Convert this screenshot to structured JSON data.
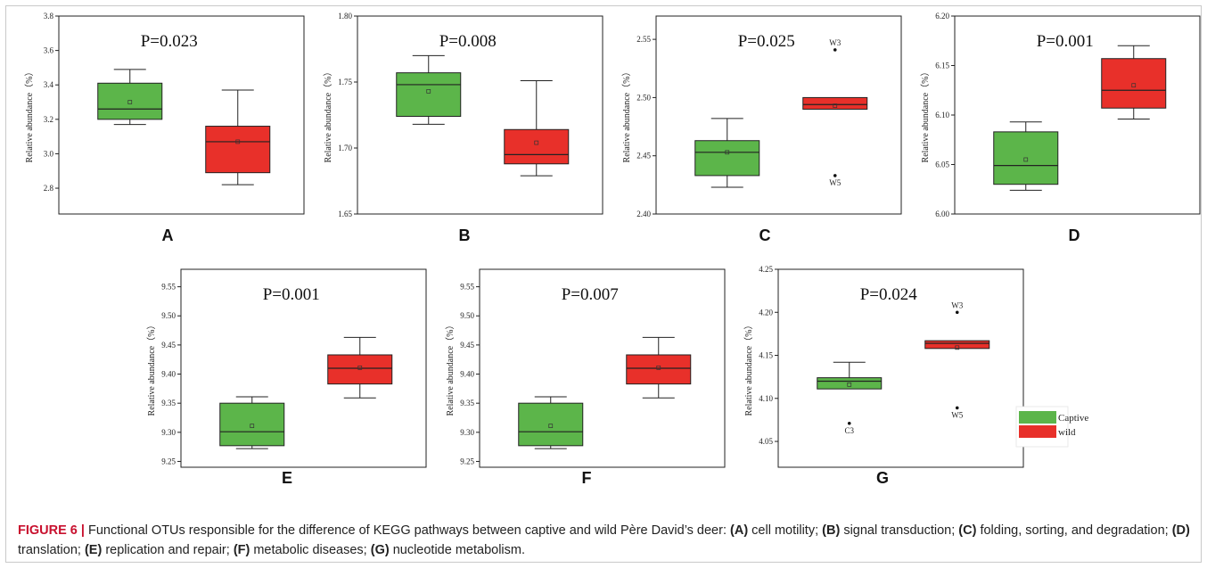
{
  "colors": {
    "captive": "#5cb54a",
    "wild": "#e8302a",
    "caption_label": "#c8102e"
  },
  "legend": {
    "items": [
      {
        "label": "Captive",
        "color": "#5cb54a"
      },
      {
        "label": "wild",
        "color": "#e8302a"
      }
    ]
  },
  "caption": {
    "label": "FIGURE 6 |",
    "parts": [
      {
        "text": " Functional OTUs responsible for the difference of KEGG pathways between captive and wild Père David’s deer: ",
        "bold": false
      },
      {
        "text": "(A)",
        "bold": true
      },
      {
        "text": " cell motility; ",
        "bold": false
      },
      {
        "text": "(B)",
        "bold": true
      },
      {
        "text": " signal transduction; ",
        "bold": false
      },
      {
        "text": "(C)",
        "bold": true
      },
      {
        "text": " folding, sorting, and degradation; ",
        "bold": false
      },
      {
        "text": "(D)",
        "bold": true
      },
      {
        "text": " translation; ",
        "bold": false
      },
      {
        "text": "(E)",
        "bold": true
      },
      {
        "text": " replication and repair; ",
        "bold": false
      },
      {
        "text": "(F)",
        "bold": true
      },
      {
        "text": " metabolic diseases; ",
        "bold": false
      },
      {
        "text": "(G)",
        "bold": true
      },
      {
        "text": " nucleotide metabolism.",
        "bold": false
      }
    ]
  },
  "chart_data": [
    {
      "type": "box",
      "panel": "A",
      "annotation": "P=0.023",
      "ylabel": "Relative abundance（%）",
      "ylim": [
        2.65,
        3.8
      ],
      "yticks": [
        "2.8",
        "3.0",
        "3.2",
        "3.4",
        "3.6",
        "3.8"
      ],
      "boxes": [
        {
          "group": "Captive",
          "whisker_low": 3.17,
          "q1": 3.2,
          "median": 3.26,
          "q3": 3.41,
          "whisker_high": 3.49,
          "mean": 3.3,
          "outliers": []
        },
        {
          "group": "wild",
          "whisker_low": 2.82,
          "q1": 2.89,
          "median": 3.07,
          "q3": 3.16,
          "whisker_high": 3.37,
          "mean": 3.07,
          "outliers": []
        }
      ]
    },
    {
      "type": "box",
      "panel": "B",
      "annotation": "P=0.008",
      "ylabel": "Relative abundance（%）",
      "ylim": [
        1.65,
        1.8
      ],
      "yticks": [
        "1.65",
        "1.70",
        "1.75",
        "1.80"
      ],
      "boxes": [
        {
          "group": "Captive",
          "whisker_low": 1.718,
          "q1": 1.724,
          "median": 1.748,
          "q3": 1.757,
          "whisker_high": 1.77,
          "mean": 1.743,
          "outliers": []
        },
        {
          "group": "wild",
          "whisker_low": 1.679,
          "q1": 1.688,
          "median": 1.695,
          "q3": 1.714,
          "whisker_high": 1.751,
          "mean": 1.704,
          "outliers": []
        }
      ]
    },
    {
      "type": "box",
      "panel": "C",
      "annotation": "P=0.025",
      "ylabel": "Relative abundance（%）",
      "ylim": [
        2.4,
        2.57
      ],
      "yticks": [
        "2.40",
        "2.45",
        "2.50",
        "2.55"
      ],
      "boxes": [
        {
          "group": "Captive",
          "whisker_low": 2.423,
          "q1": 2.433,
          "median": 2.453,
          "q3": 2.463,
          "whisker_high": 2.482,
          "mean": 2.453,
          "outliers": []
        },
        {
          "group": "wild",
          "whisker_low": null,
          "q1": 2.49,
          "median": 2.494,
          "q3": 2.5,
          "whisker_high": null,
          "mean": 2.493,
          "outliers": [
            {
              "value": 2.541,
              "label": "W3"
            },
            {
              "value": 2.433,
              "label": "W5"
            }
          ]
        }
      ]
    },
    {
      "type": "box",
      "panel": "D",
      "annotation": "P=0.001",
      "ylabel": "Relative abundance（%）",
      "ylim": [
        6.0,
        6.2
      ],
      "yticks": [
        "6.00",
        "6.05",
        "6.10",
        "6.15",
        "6.20"
      ],
      "boxes": [
        {
          "group": "Captive",
          "whisker_low": 6.024,
          "q1": 6.03,
          "median": 6.049,
          "q3": 6.083,
          "whisker_high": 6.093,
          "mean": 6.055,
          "outliers": []
        },
        {
          "group": "wild",
          "whisker_low": 6.096,
          "q1": 6.107,
          "median": 6.125,
          "q3": 6.157,
          "whisker_high": 6.17,
          "mean": 6.13,
          "outliers": []
        }
      ]
    },
    {
      "type": "box",
      "panel": "E",
      "annotation": "P=0.001",
      "ylabel": "Relative abundance（%）",
      "ylim": [
        9.24,
        9.58
      ],
      "yticks": [
        "9.25",
        "9.30",
        "9.35",
        "9.40",
        "9.45",
        "9.50",
        "9.55"
      ],
      "boxes": [
        {
          "group": "Captive",
          "whisker_low": 9.272,
          "q1": 9.277,
          "median": 9.301,
          "q3": 9.35,
          "whisker_high": 9.361,
          "mean": 9.311,
          "outliers": []
        },
        {
          "group": "wild",
          "whisker_low": 9.359,
          "q1": 9.383,
          "median": 9.41,
          "q3": 9.433,
          "whisker_high": 9.463,
          "mean": 9.411,
          "outliers": []
        }
      ]
    },
    {
      "type": "box",
      "panel": "F",
      "annotation": "P=0.007",
      "ylabel": "Relative abundance（%）",
      "ylim": [
        9.24,
        9.58
      ],
      "yticks": [
        "9.25",
        "9.30",
        "9.35",
        "9.40",
        "9.45",
        "9.50",
        "9.55"
      ],
      "boxes": [
        {
          "group": "Captive",
          "whisker_low": 9.272,
          "q1": 9.277,
          "median": 9.301,
          "q3": 9.35,
          "whisker_high": 9.361,
          "mean": 9.311,
          "outliers": []
        },
        {
          "group": "wild",
          "whisker_low": 9.359,
          "q1": 9.383,
          "median": 9.41,
          "q3": 9.433,
          "whisker_high": 9.463,
          "mean": 9.411,
          "outliers": []
        }
      ]
    },
    {
      "type": "box",
      "panel": "G",
      "annotation": "P=0.024",
      "ylabel": "Relative abundance（%）",
      "ylim": [
        4.02,
        4.25
      ],
      "yticks": [
        "4.05",
        "4.10",
        "4.15",
        "4.20",
        "4.25"
      ],
      "boxes": [
        {
          "group": "Captive",
          "whisker_low": null,
          "q1": 4.111,
          "median": 4.12,
          "q3": 4.124,
          "whisker_high": 4.142,
          "mean": 4.116,
          "outliers": [
            {
              "value": 4.071,
              "label": "C3"
            }
          ]
        },
        {
          "group": "wild",
          "whisker_low": null,
          "q1": 4.158,
          "median": 4.164,
          "q3": 4.167,
          "whisker_high": null,
          "mean": 4.159,
          "outliers": [
            {
              "value": 4.2,
              "label": "W3"
            },
            {
              "value": 4.089,
              "label": "W5"
            }
          ]
        }
      ]
    }
  ]
}
